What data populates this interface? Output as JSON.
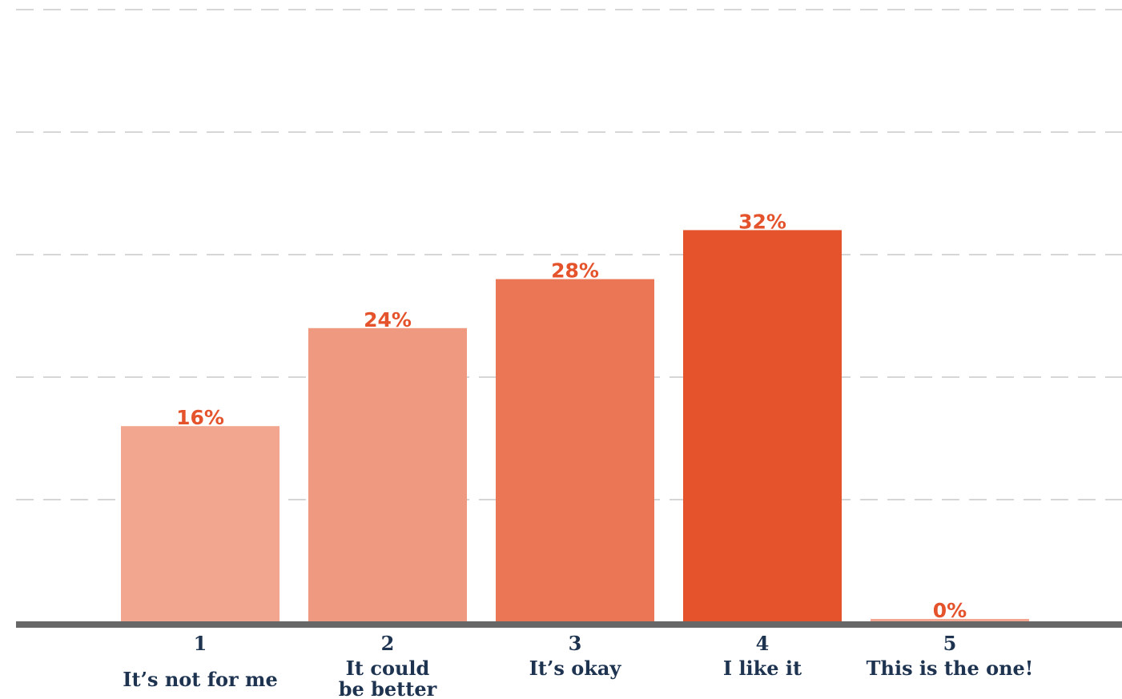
{
  "chart_data": {
    "type": "bar",
    "categories": [
      {
        "number": "1",
        "label_lines": [
          "It’s not for me"
        ]
      },
      {
        "number": "2",
        "label_lines": [
          "It could",
          "be better"
        ]
      },
      {
        "number": "3",
        "label_lines": [
          "It’s okay"
        ]
      },
      {
        "number": "4",
        "label_lines": [
          "I like it"
        ]
      },
      {
        "number": "5",
        "label_lines": [
          "This is the one!"
        ]
      }
    ],
    "values": [
      16,
      24,
      28,
      32,
      0
    ],
    "value_labels": [
      "16%",
      "24%",
      "28%",
      "32%",
      "0%"
    ],
    "title": "",
    "xlabel": "",
    "ylabel": "",
    "ylim": [
      0,
      50
    ],
    "grid": true,
    "legend": "none",
    "colors": {
      "bars": [
        "#f2a68f",
        "#ef9980",
        "#ea7656",
        "#e4532b",
        "#f2a68f"
      ],
      "value_label": "#e4532b",
      "category_text": "#1d3350",
      "gridline": "#c8c8c8",
      "baseline": "#676767"
    }
  }
}
